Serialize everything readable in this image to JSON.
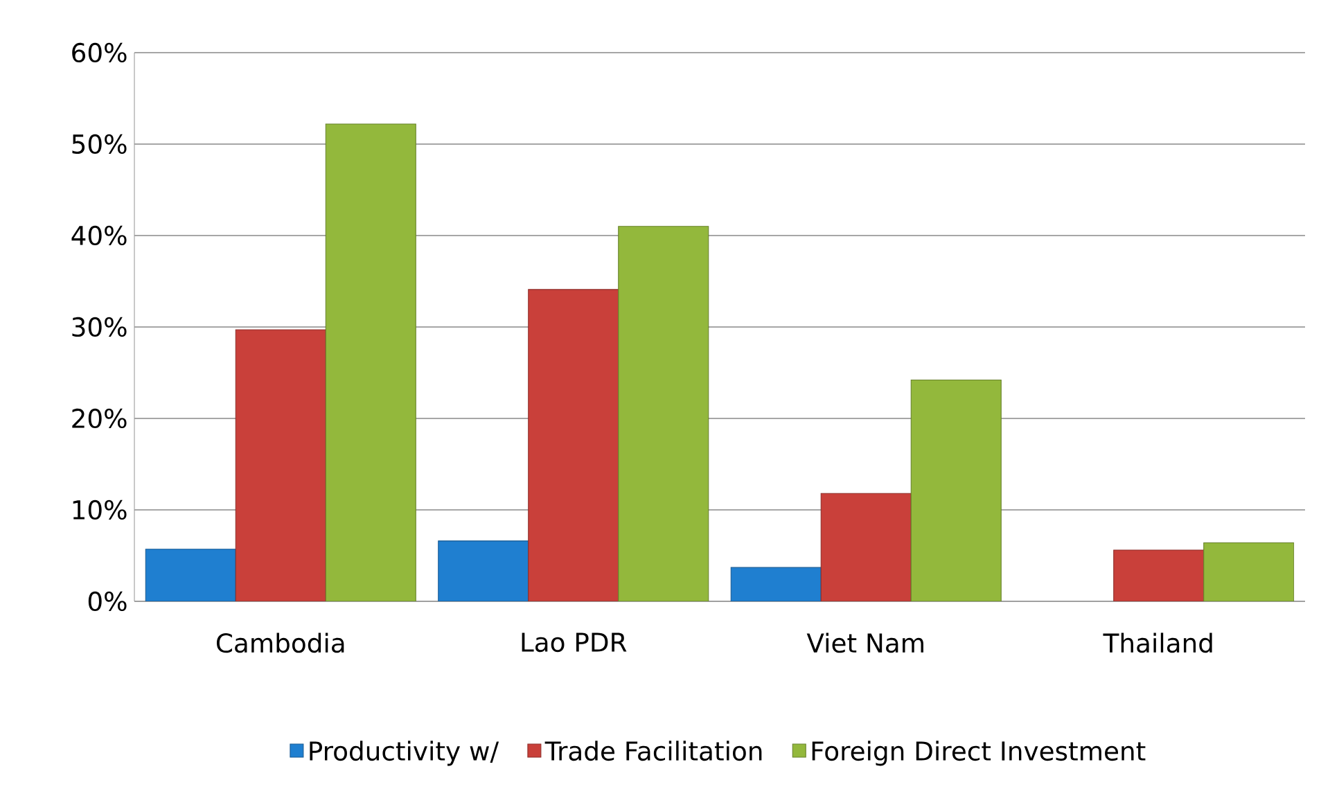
{
  "chart_data": {
    "type": "bar",
    "categories": [
      "Cambodia",
      "Lao PDR",
      "Viet Nam",
      "Thailand"
    ],
    "series": [
      {
        "name": "Productivity w/",
        "color": "#1f7fd0",
        "values": [
          5.7,
          6.6,
          3.7,
          null
        ]
      },
      {
        "name": "Trade Facilitation",
        "color": "#c9403a",
        "values": [
          29.7,
          34.1,
          11.8,
          5.6
        ]
      },
      {
        "name": "Foreign Direct Investment",
        "color": "#93b83c",
        "values": [
          52.2,
          41.0,
          24.2,
          6.4
        ]
      }
    ],
    "ylim": [
      0,
      60
    ],
    "yticks": [
      {
        "value": 0,
        "label": "0%"
      },
      {
        "value": 10,
        "label": "10%"
      },
      {
        "value": 20,
        "label": "20%"
      },
      {
        "value": 30,
        "label": "30%"
      },
      {
        "value": 40,
        "label": "40%"
      },
      {
        "value": 50,
        "label": "50%"
      },
      {
        "value": 60,
        "label": "60%"
      }
    ],
    "grid": "y",
    "legend": "bottom"
  }
}
